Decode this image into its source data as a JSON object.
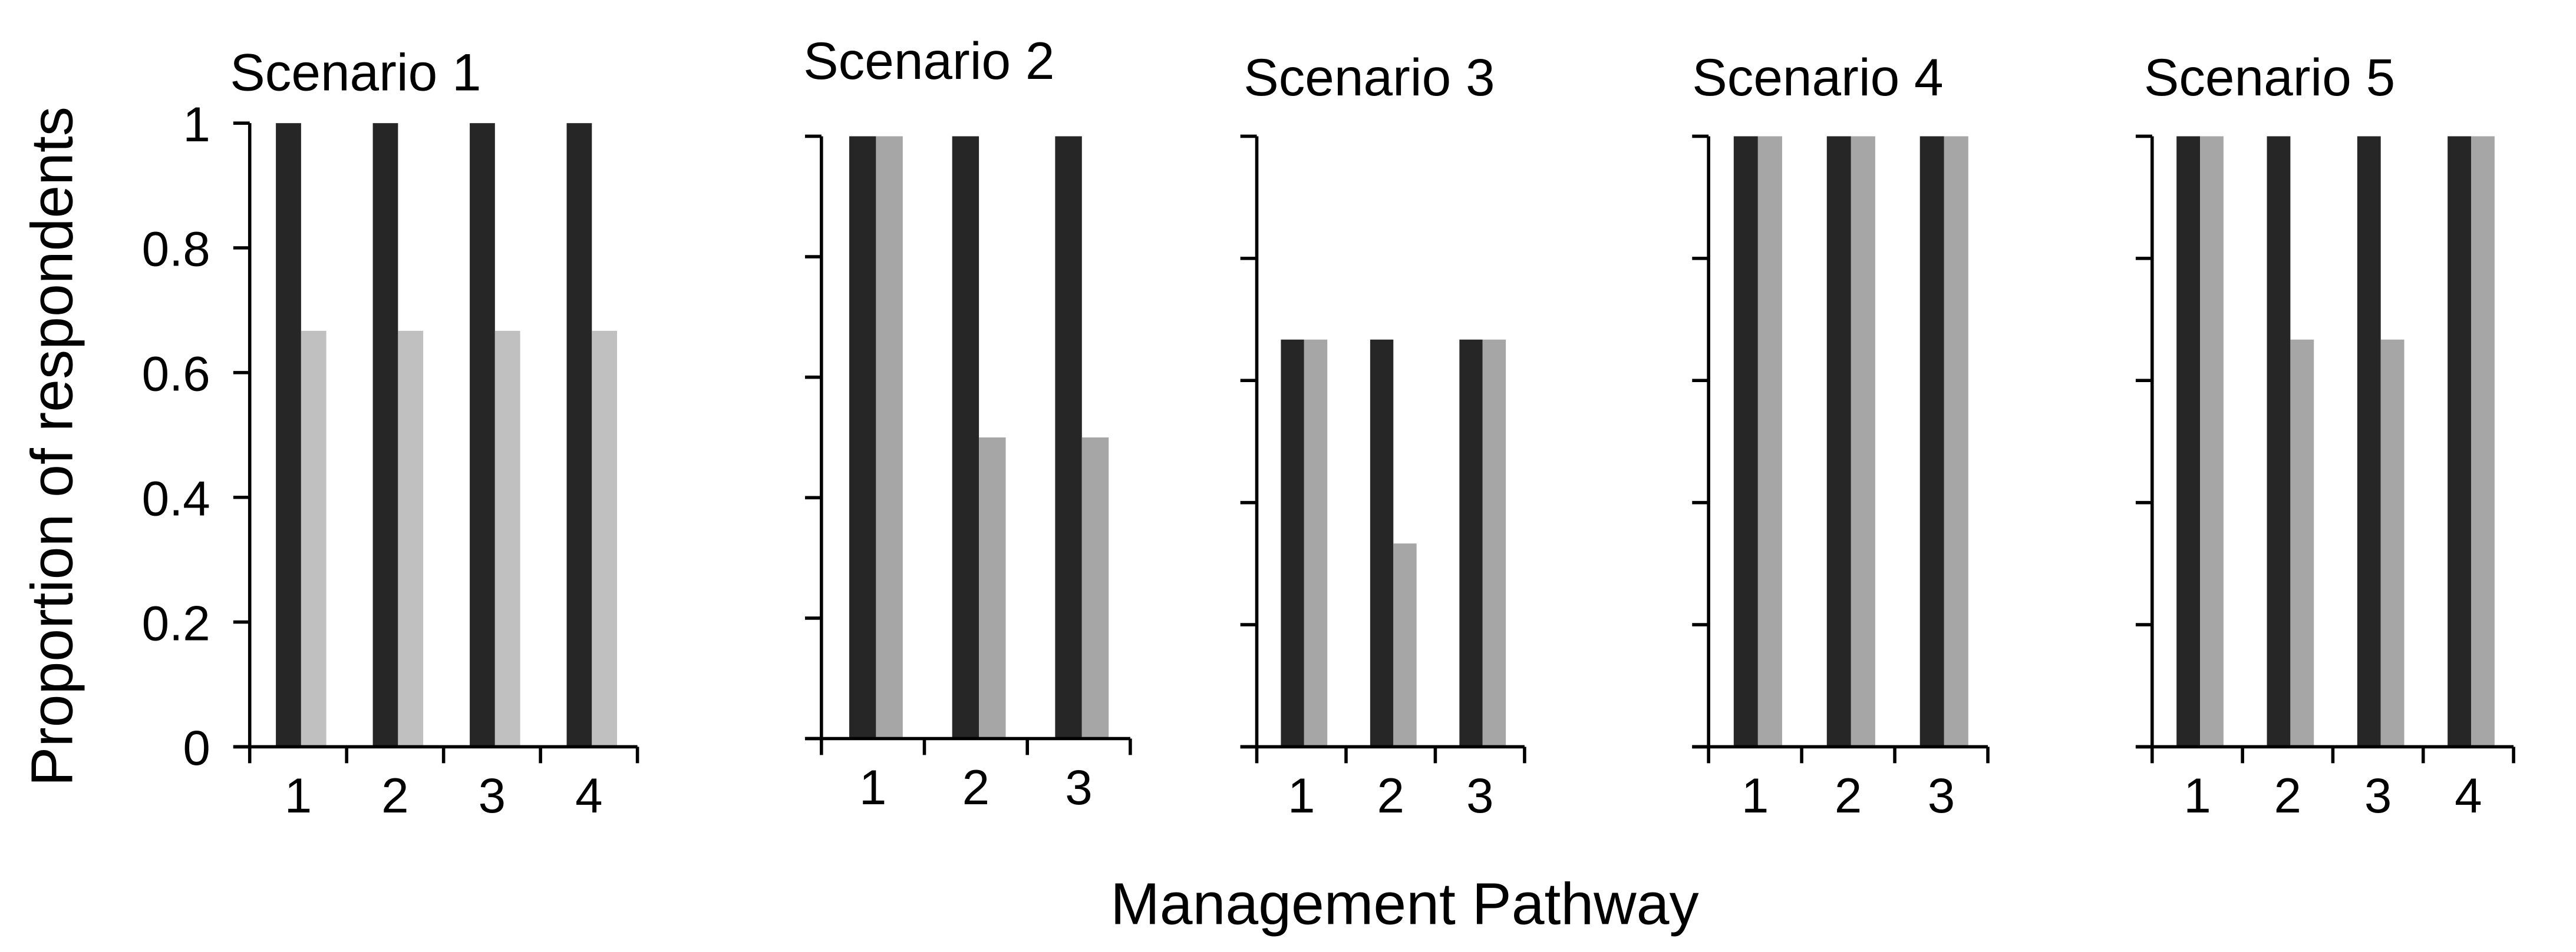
{
  "chart_data": [
    {
      "type": "bar",
      "title": "Scenario 1",
      "categories": [
        "1",
        "2",
        "3",
        "4"
      ],
      "ylim": [
        0,
        1
      ],
      "yticks": [
        "0",
        "0.2",
        "0.4",
        "0.6",
        "0.8",
        "1"
      ],
      "show_ytick_labels": true,
      "series": [
        {
          "values": [
            1,
            1,
            1,
            1
          ],
          "color": "#262626"
        },
        {
          "values": [
            0.667,
            0.667,
            0.667,
            0.667
          ],
          "color": "#c0c0c0"
        }
      ]
    },
    {
      "type": "bar",
      "title": "Scenario 2",
      "categories": [
        "1",
        "2",
        "3"
      ],
      "ylim": [
        0,
        1
      ],
      "show_ytick_labels": false,
      "series": [
        {
          "values": [
            1,
            1,
            1
          ],
          "color": "#262626"
        },
        {
          "values": [
            1,
            0.5,
            0.5
          ],
          "color": "#a6a6a6"
        }
      ]
    },
    {
      "type": "bar",
      "title": "Scenario 3",
      "categories": [
        "1",
        "2",
        "3"
      ],
      "ylim": [
        0,
        1
      ],
      "show_ytick_labels": false,
      "series": [
        {
          "values": [
            0.667,
            0.667,
            0.667
          ],
          "color": "#262626"
        },
        {
          "values": [
            0.667,
            0.333,
            0.667
          ],
          "color": "#a6a6a6"
        }
      ]
    },
    {
      "type": "bar",
      "title": "Scenario 4",
      "categories": [
        "1",
        "2",
        "3"
      ],
      "ylim": [
        0,
        1
      ],
      "show_ytick_labels": false,
      "series": [
        {
          "values": [
            1,
            1,
            1
          ],
          "color": "#262626"
        },
        {
          "values": [
            1,
            1,
            1
          ],
          "color": "#a6a6a6"
        }
      ]
    },
    {
      "type": "bar",
      "title": "Scenario 5",
      "categories": [
        "1",
        "2",
        "3",
        "4"
      ],
      "ylim": [
        0,
        1
      ],
      "show_ytick_labels": false,
      "series": [
        {
          "values": [
            1,
            1,
            1,
            1
          ],
          "color": "#262626"
        },
        {
          "values": [
            1,
            0.667,
            0.667,
            1
          ],
          "color": "#a6a6a6"
        }
      ]
    }
  ],
  "ylabel": "Proportion of  respondents",
  "xlabel": "Management Pathway",
  "grid": false,
  "legend": "none"
}
